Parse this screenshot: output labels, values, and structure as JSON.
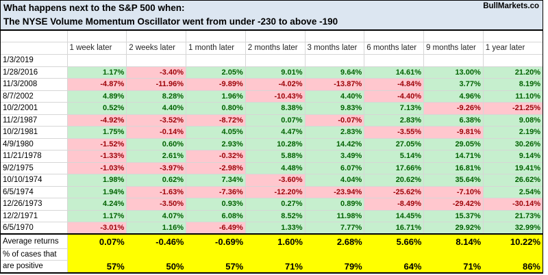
{
  "title": {
    "line1": "What happens next to the S&P 500 when:",
    "line2": "The NYSE Volume Momentum Oscillator went from under -230 to above -190",
    "brand": "BullMarkets.co"
  },
  "colors": {
    "title_bg": "#dce6f1",
    "positive_bg": "#c6efce",
    "positive_text": "#006100",
    "negative_bg": "#ffc7ce",
    "negative_text": "#9c0006",
    "summary_bg": "#ffff00",
    "gridline": "#d6d6d6"
  },
  "table": {
    "columns": [
      "1 week later",
      "2 weeks later",
      "1 month later",
      "2 months later",
      "3 months later",
      "6 months later",
      "9 months later",
      "1 year later"
    ],
    "empty_row_date": "1/3/2019",
    "rows": [
      {
        "date": "1/28/2016",
        "values": [
          "1.17%",
          "-3.40%",
          "2.05%",
          "9.01%",
          "9.64%",
          "14.61%",
          "13.00%",
          "21.20%"
        ]
      },
      {
        "date": "11/3/2008",
        "values": [
          "-4.87%",
          "-11.96%",
          "-9.89%",
          "-4.02%",
          "-13.87%",
          "-4.84%",
          "3.77%",
          "8.19%"
        ]
      },
      {
        "date": "8/7/2002",
        "values": [
          "4.89%",
          "8.28%",
          "1.96%",
          "-10.43%",
          "4.40%",
          "-4.40%",
          "4.96%",
          "11.10%"
        ]
      },
      {
        "date": "10/2/2001",
        "values": [
          "0.52%",
          "4.40%",
          "0.80%",
          "8.38%",
          "9.83%",
          "7.13%",
          "-9.26%",
          "-21.25%"
        ]
      },
      {
        "date": "11/2/1987",
        "values": [
          "-4.92%",
          "-3.52%",
          "-8.72%",
          "0.07%",
          "-0.07%",
          "2.83%",
          "6.38%",
          "9.08%"
        ]
      },
      {
        "date": "10/2/1981",
        "values": [
          "1.75%",
          "-0.14%",
          "4.05%",
          "4.47%",
          "2.83%",
          "-3.55%",
          "-9.81%",
          "2.19%"
        ]
      },
      {
        "date": "4/9/1980",
        "values": [
          "-1.52%",
          "0.60%",
          "2.93%",
          "10.28%",
          "14.42%",
          "27.05%",
          "29.05%",
          "30.26%"
        ]
      },
      {
        "date": "11/21/1978",
        "values": [
          "-1.33%",
          "2.61%",
          "-0.32%",
          "5.88%",
          "3.49%",
          "5.14%",
          "14.71%",
          "9.14%"
        ]
      },
      {
        "date": "9/2/1975",
        "values": [
          "-1.03%",
          "-3.97%",
          "-2.98%",
          "4.48%",
          "6.07%",
          "17.66%",
          "16.81%",
          "19.41%"
        ]
      },
      {
        "date": "10/10/1974",
        "values": [
          "1.98%",
          "0.62%",
          "7.34%",
          "-3.60%",
          "4.04%",
          "20.62%",
          "35.64%",
          "26.62%"
        ]
      },
      {
        "date": "6/5/1974",
        "values": [
          "1.94%",
          "-1.63%",
          "-7.36%",
          "-12.20%",
          "-23.94%",
          "-25.62%",
          "-7.10%",
          "2.54%"
        ]
      },
      {
        "date": "12/26/1973",
        "values": [
          "4.24%",
          "-3.50%",
          "0.93%",
          "0.27%",
          "0.89%",
          "-8.49%",
          "-29.42%",
          "-30.14%"
        ]
      },
      {
        "date": "12/2/1971",
        "values": [
          "1.17%",
          "4.07%",
          "6.08%",
          "8.52%",
          "11.98%",
          "14.45%",
          "15.37%",
          "21.73%"
        ]
      },
      {
        "date": "6/5/1970",
        "values": [
          "-3.01%",
          "1.16%",
          "-6.49%",
          "1.33%",
          "7.77%",
          "16.71%",
          "29.92%",
          "32.99%"
        ]
      }
    ],
    "summary": {
      "avg_label": "Average returns",
      "avg_values": [
        "0.07%",
        "-0.46%",
        "-0.69%",
        "1.60%",
        "2.68%",
        "5.66%",
        "8.14%",
        "10.22%"
      ],
      "pct_label_line1": "% of cases that",
      "pct_label_line2": "are positive",
      "pct_values": [
        "57%",
        "50%",
        "57%",
        "71%",
        "79%",
        "64%",
        "71%",
        "86%"
      ]
    }
  }
}
